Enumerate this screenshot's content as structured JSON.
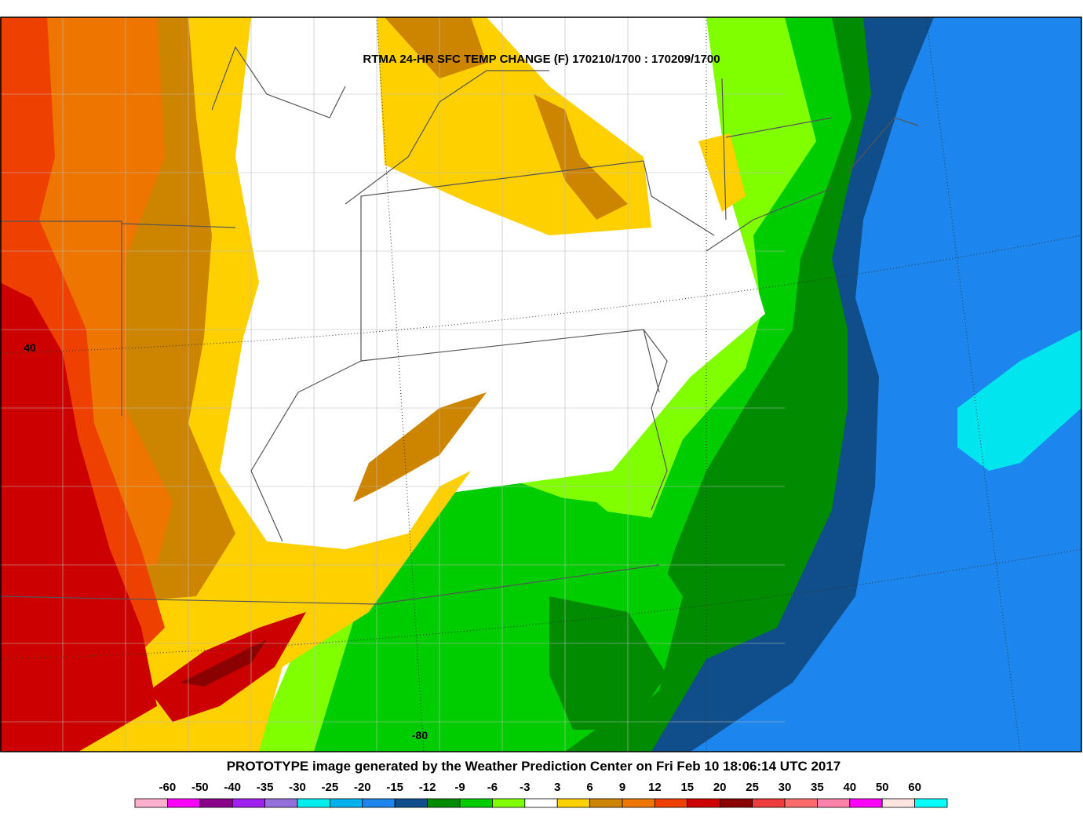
{
  "title": "RTMA 24-HR SFC TEMP CHANGE (F) 170210/1700 : 170209/1700",
  "latitude_label": "40",
  "longitude_label": "-80",
  "footer": "PROTOTYPE image generated by the Weather Prediction Center on Fri Feb 10 18:06:14 UTC 2017",
  "legend": {
    "labels": [
      -60,
      -50,
      -40,
      -35,
      -30,
      -25,
      -20,
      -15,
      -12,
      -9,
      -6,
      -3,
      3,
      6,
      9,
      12,
      15,
      20,
      25,
      30,
      35,
      40,
      50,
      60
    ],
    "colors": [
      "#ffb0cc",
      "#ff00ff",
      "#8b008b",
      "#a020f0",
      "#9370db",
      "#00eeee",
      "#00b2ee",
      "#1c86ee",
      "#104e8b",
      "#008b00",
      "#00cd00",
      "#7fff00",
      "#ffffff",
      "#ffd000",
      "#cd8500",
      "#ee7600",
      "#ee4000",
      "#cd0000",
      "#8b0000",
      "#ee3b3b",
      "#ff6a6a",
      "#ff82ab",
      "#ff00ff",
      "#ffe4e1",
      "#00ffff"
    ]
  }
}
